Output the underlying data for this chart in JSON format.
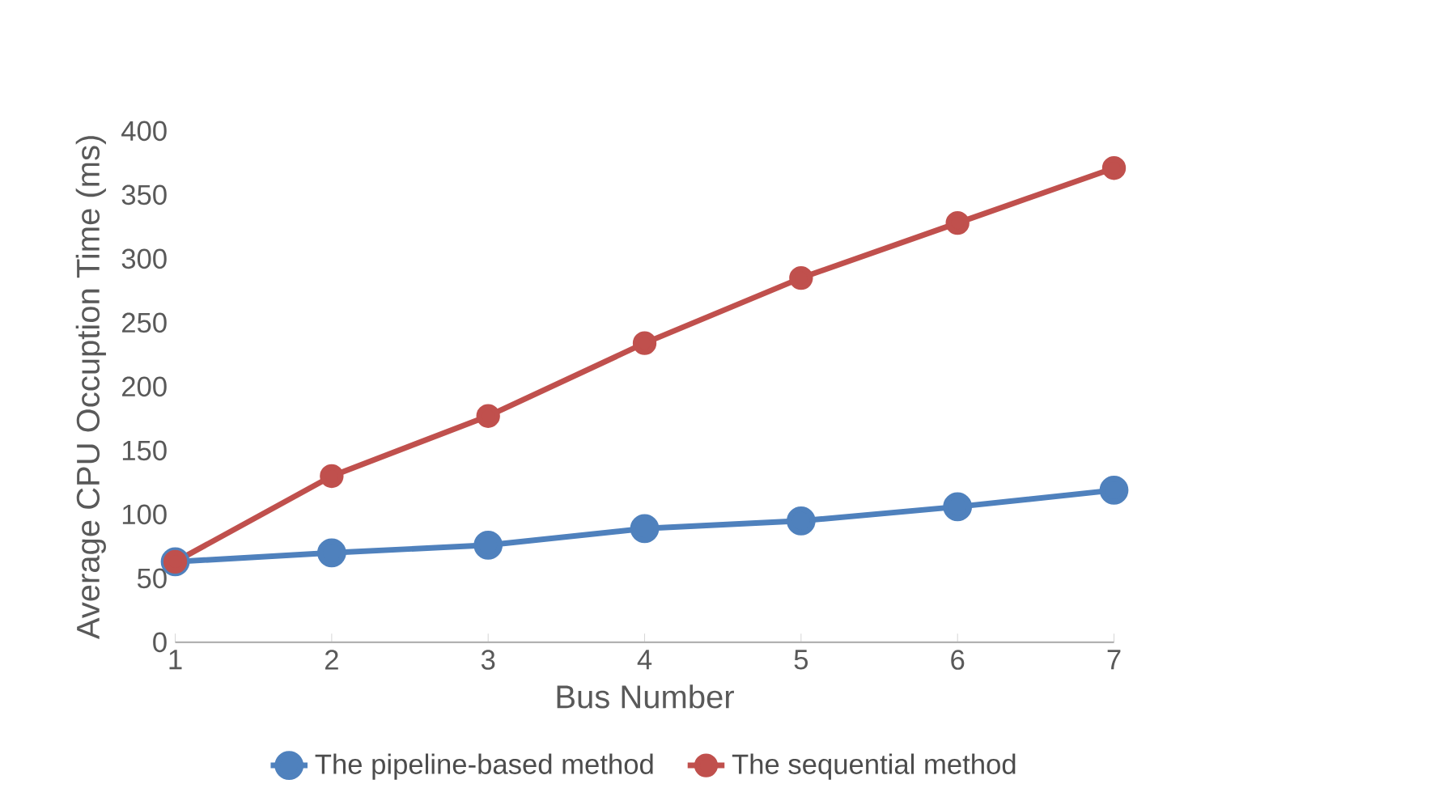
{
  "chart_data": {
    "type": "line",
    "xlabel": "Bus Number",
    "ylabel": "Average CPU Occuption Time (ms)",
    "x": [
      1,
      2,
      3,
      4,
      5,
      6,
      7
    ],
    "xlim": [
      1,
      7
    ],
    "xticks": [
      1,
      2,
      3,
      4,
      5,
      6,
      7
    ],
    "ylim": [
      0,
      400
    ],
    "yticks": [
      0,
      50,
      100,
      150,
      200,
      250,
      300,
      350,
      400
    ],
    "grid": false,
    "legend": "bottom",
    "marker": "circle",
    "line_style": "solid",
    "series": [
      {
        "name": "The pipeline-based method",
        "color": "#4f81bd",
        "values": [
          63,
          70,
          76,
          89,
          95,
          106,
          119
        ]
      },
      {
        "name": "The sequential method",
        "color": "#c0504d",
        "values": [
          63,
          130,
          177,
          234,
          285,
          328,
          371
        ]
      }
    ]
  }
}
